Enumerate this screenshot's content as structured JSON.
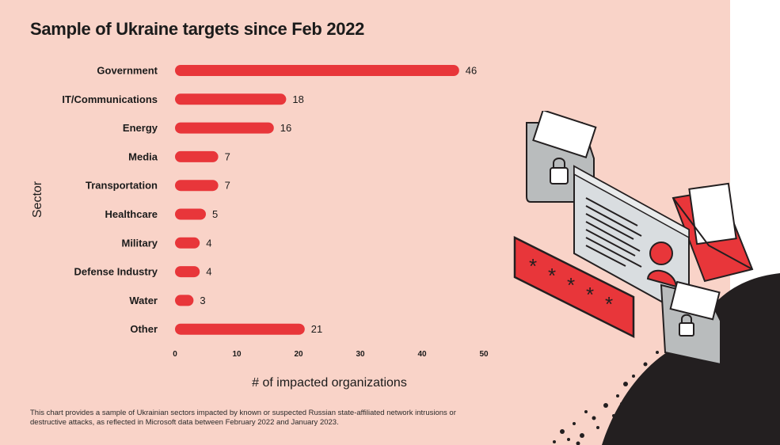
{
  "chart_data": {
    "type": "bar",
    "orientation": "horizontal",
    "title": "Sample of Ukraine targets since Feb 2022",
    "xlabel": "# of impacted organizations",
    "ylabel": "Sector",
    "categories": [
      "Government",
      "IT/Communications",
      "Energy",
      "Media",
      "Transportation",
      "Healthcare",
      "Military",
      "Defense Industry",
      "Water",
      "Other"
    ],
    "values": [
      46,
      18,
      16,
      7,
      7,
      5,
      4,
      4,
      3,
      21
    ],
    "xlim": [
      0,
      50
    ],
    "xticks": [
      0,
      10,
      20,
      30,
      40,
      50
    ],
    "grid": false,
    "bar_color": "#e8363a"
  },
  "caption": "This chart provides a sample of Ukrainian sectors impacted by known or suspected Russian state-affiliated network intrusions or destructive attacks, as reflected in Microsoft data between February 2022 and January 2023.",
  "colors": {
    "background": "#f9d3c8",
    "accent": "#e8363a",
    "text": "#1b1b1b"
  }
}
